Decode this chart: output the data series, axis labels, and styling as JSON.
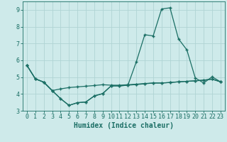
{
  "xlabel": "Humidex (Indice chaleur)",
  "bg_color": "#ceeaea",
  "grid_color": "#afd4d4",
  "line_color": "#1a6e64",
  "x_values": [
    0,
    1,
    2,
    3,
    4,
    5,
    6,
    7,
    8,
    9,
    10,
    11,
    12,
    13,
    14,
    15,
    16,
    17,
    18,
    19,
    20,
    21,
    22,
    23
  ],
  "line1": [
    5.7,
    4.9,
    4.7,
    4.2,
    4.3,
    4.38,
    4.42,
    4.46,
    4.5,
    4.55,
    4.52,
    4.52,
    4.55,
    4.58,
    4.62,
    4.65,
    4.65,
    4.68,
    4.72,
    4.75,
    4.78,
    4.82,
    4.88,
    4.72
  ],
  "line2": [
    5.7,
    4.9,
    4.7,
    4.2,
    3.72,
    3.32,
    3.48,
    3.52,
    3.88,
    4.02,
    4.48,
    4.48,
    4.52,
    5.92,
    7.52,
    7.45,
    9.05,
    9.12,
    7.28,
    6.62,
    4.95,
    4.65,
    5.02,
    4.72
  ],
  "line3": [
    5.7,
    4.9,
    4.7,
    4.2,
    3.72,
    3.32,
    3.48,
    3.52,
    3.88,
    4.02,
    4.48,
    4.48,
    4.52,
    4.56,
    4.6,
    4.65,
    4.65,
    4.68,
    4.72,
    4.75,
    4.78,
    4.82,
    4.88,
    4.72
  ],
  "ylim": [
    3.0,
    9.5
  ],
  "xlim_min": -0.5,
  "xlim_max": 23.5,
  "yticks": [
    3,
    4,
    5,
    6,
    7,
    8,
    9
  ],
  "xticks": [
    0,
    1,
    2,
    3,
    4,
    5,
    6,
    7,
    8,
    9,
    10,
    11,
    12,
    13,
    14,
    15,
    16,
    17,
    18,
    19,
    20,
    21,
    22,
    23
  ],
  "marker": "+",
  "markersize": 3,
  "linewidth": 0.9,
  "xlabel_fontsize": 7,
  "tick_fontsize": 6
}
